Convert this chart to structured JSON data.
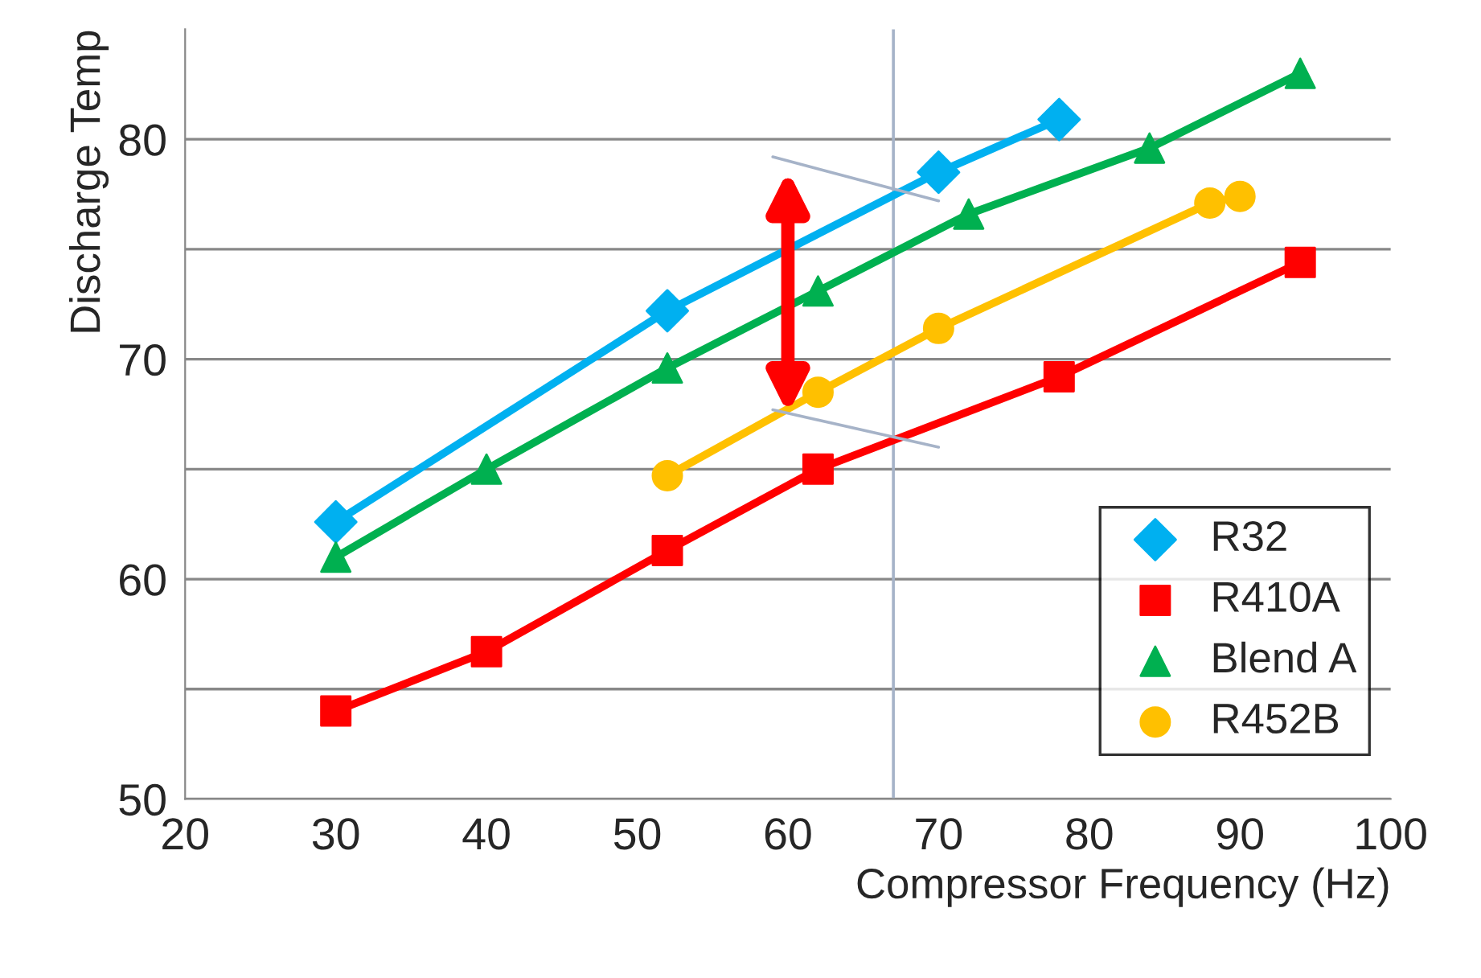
{
  "chart_data": {
    "type": "line",
    "xlabel": "Compressor Frequency (Hz)",
    "ylabel": "Discharge Temp",
    "xlim": [
      20,
      100
    ],
    "xticks": [
      20,
      30,
      40,
      50,
      60,
      70,
      80,
      90,
      100
    ],
    "ylim": [
      50,
      85
    ],
    "yticks": [
      50,
      {
        "value": 55,
        "label": null
      },
      60,
      {
        "value": 65,
        "label": null
      },
      70,
      {
        "value": 75,
        "label": null
      },
      80
    ],
    "grid": "y",
    "legend": "bottom right",
    "series": [
      {
        "name": "R32",
        "color": "#00b0f0",
        "marker": "diamond",
        "x": [
          30,
          52,
          70,
          78
        ],
        "values": [
          62.6,
          72.2,
          78.5,
          80.9
        ]
      },
      {
        "name": "R410A",
        "color": "#ff0000",
        "marker": "square",
        "x": [
          30,
          40,
          52,
          62,
          78,
          94
        ],
        "values": [
          54.0,
          56.7,
          61.3,
          65.0,
          69.2,
          74.4
        ]
      },
      {
        "name": "Blend A",
        "color": "#00b050",
        "marker": "triangle",
        "x": [
          30,
          40,
          52,
          62,
          72,
          84,
          94
        ],
        "values": [
          61.0,
          65.0,
          69.6,
          73.1,
          76.6,
          79.6,
          83.0
        ]
      },
      {
        "name": "R452B",
        "color": "#ffc000",
        "marker": "circle",
        "x": [
          52,
          62,
          70,
          88,
          90
        ],
        "values": [
          64.7,
          68.5,
          71.4,
          77.1,
          77.4
        ]
      }
    ],
    "ref_lines": [
      {
        "axis": "x",
        "value": 67,
        "color": "#a6b3c8"
      }
    ]
  }
}
